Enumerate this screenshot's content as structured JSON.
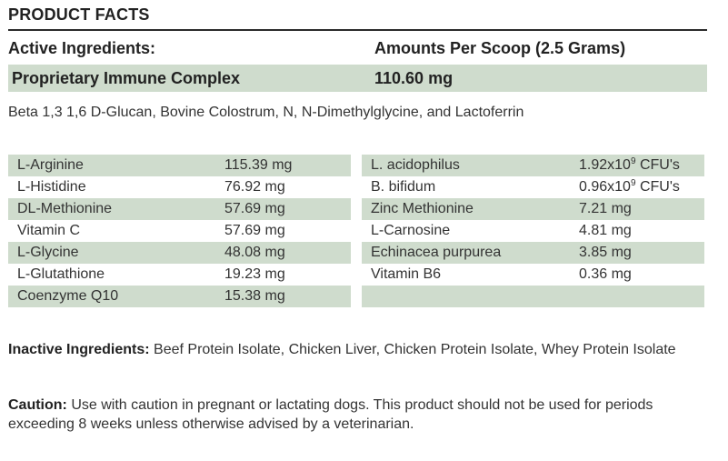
{
  "title": "PRODUCT FACTS",
  "header": {
    "active_label": "Active Ingredients:",
    "amount_label": "Amounts Per Scoop (2.5 Grams)"
  },
  "complex": {
    "name": "Proprietary Immune Complex",
    "amount": "110.60 mg",
    "description": "Beta 1,3 1,6 D-Glucan, Bovine Colostrum, N, N-Dimethylglycine, and Lactoferrin"
  },
  "left_table": [
    {
      "name": "L-Arginine",
      "amount": "115.39 mg",
      "shaded": true
    },
    {
      "name": "L-Histidine",
      "amount": "76.92 mg",
      "shaded": false
    },
    {
      "name": "DL-Methionine",
      "amount": "57.69 mg",
      "shaded": true
    },
    {
      "name": "Vitamin C",
      "amount": "57.69 mg",
      "shaded": false
    },
    {
      "name": "L-Glycine",
      "amount": "48.08 mg",
      "shaded": true
    },
    {
      "name": "L-Glutathione",
      "amount": "19.23 mg",
      "shaded": false
    },
    {
      "name": "Coenzyme Q10",
      "amount": "15.38 mg",
      "shaded": true
    }
  ],
  "right_table": [
    {
      "name": "L. acidophilus",
      "amount": "1.92x10",
      "sup": "9",
      "unit": " CFU's",
      "shaded": true
    },
    {
      "name": "B. bifidum",
      "amount": "0.96x10",
      "sup": "9",
      "unit": " CFU's",
      "shaded": false
    },
    {
      "name": "Zinc Methionine",
      "amount": "7.21 mg",
      "shaded": true
    },
    {
      "name": "L-Carnosine",
      "amount": "4.81 mg",
      "shaded": false
    },
    {
      "name": "Echinacea purpurea",
      "amount": "3.85 mg",
      "shaded": true
    },
    {
      "name": "Vitamin B6",
      "amount": "0.36 mg",
      "shaded": false
    },
    {
      "name": "",
      "amount": "",
      "shaded": true
    }
  ],
  "inactive": {
    "label": "Inactive Ingredients:",
    "text": " Beef Protein Isolate, Chicken Liver, Chicken Protein Isolate, Whey Protein Isolate"
  },
  "caution": {
    "label": "Caution:",
    "text": " Use with caution in pregnant or lactating dogs. This product should not be used for periods exceeding 8 weeks unless otherwise advised by a veterinarian."
  },
  "colors": {
    "shade": "#cfdccd",
    "rule": "#2b2b2b",
    "text": "#333333"
  }
}
